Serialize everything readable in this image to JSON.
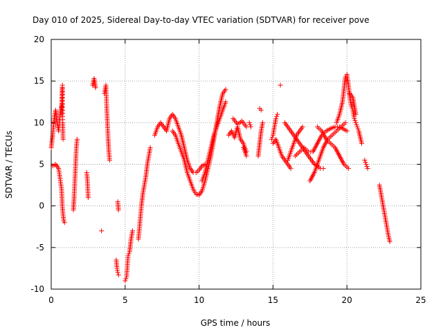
{
  "chart_data": {
    "type": "scatter",
    "title": "Day 010 of 2025, Sidereal Day-to-day VTEC variation (SDTVAR) for receiver pove",
    "xlabel": "GPS time / hours",
    "ylabel": "SDTVAR / TECUs",
    "xlim": [
      0,
      25
    ],
    "ylim": [
      -10,
      20
    ],
    "x_ticks": [
      0,
      5,
      10,
      15,
      20,
      25
    ],
    "y_ticks": [
      -10,
      -5,
      0,
      5,
      10,
      15,
      20
    ],
    "grid": true,
    "marker": "+",
    "series": [
      {
        "name": "SDTVAR",
        "color": "#ff0000",
        "segments": [
          {
            "x": [
              0.0,
              0.1,
              0.2,
              0.3,
              0.4,
              0.5,
              0.6,
              0.7
            ],
            "y": [
              7.0,
              8.5,
              10.5,
              11.5,
              10.0,
              9.0,
              11.0,
              12.0
            ]
          },
          {
            "x": [
              0.1,
              0.3,
              0.5,
              0.7,
              0.75,
              0.8,
              0.85,
              0.9
            ],
            "y": [
              4.8,
              5.0,
              4.5,
              2.0,
              0.0,
              -1.0,
              -1.8,
              -2.0
            ]
          },
          {
            "x": [
              0.7,
              0.72,
              0.74,
              0.76,
              0.78,
              0.8
            ],
            "y": [
              11.0,
              12.5,
              14.0,
              14.5,
              10.0,
              8.0
            ]
          },
          {
            "x": [
              1.5,
              1.55,
              1.6,
              1.65,
              1.7,
              1.75
            ],
            "y": [
              -0.5,
              1.0,
              3.0,
              5.0,
              7.0,
              8.0
            ]
          },
          {
            "x": [
              2.4,
              2.45,
              2.5
            ],
            "y": [
              4.0,
              3.0,
              1.0
            ]
          },
          {
            "x": [
              2.8,
              2.9,
              3.0
            ],
            "y": [
              14.5,
              15.3,
              14.2
            ]
          },
          {
            "x": [
              3.4
            ],
            "y": [
              -3.0
            ]
          },
          {
            "x": [
              3.6,
              3.7,
              3.75,
              3.8,
              3.85,
              3.9,
              3.95
            ],
            "y": [
              13.5,
              14.5,
              12.0,
              10.0,
              8.0,
              6.5,
              5.5
            ]
          },
          {
            "x": [
              4.4,
              4.45,
              4.5,
              4.55
            ],
            "y": [
              -6.5,
              -7.5,
              -8.0,
              -8.3
            ]
          },
          {
            "x": [
              4.5,
              4.55
            ],
            "y": [
              0.5,
              -0.5
            ]
          },
          {
            "x": [
              5.0,
              5.1,
              5.2,
              5.3,
              5.4,
              5.5
            ],
            "y": [
              -9.0,
              -8.5,
              -6.0,
              -5.5,
              -4.0,
              -3.0
            ]
          },
          {
            "x": [
              5.9,
              6.0,
              6.1,
              6.2,
              6.3,
              6.4,
              6.5,
              6.6,
              6.7
            ],
            "y": [
              -4.0,
              -2.0,
              0.0,
              1.5,
              2.5,
              3.5,
              5.0,
              6.0,
              7.0
            ]
          },
          {
            "x": [
              7.0,
              7.2,
              7.4,
              7.6,
              7.8,
              8.0,
              8.2,
              8.4,
              8.6,
              8.8,
              9.0,
              9.2,
              9.4,
              9.6,
              9.8,
              10.0,
              10.2,
              10.4
            ],
            "y": [
              8.5,
              9.5,
              10.0,
              9.5,
              9.0,
              10.5,
              11.0,
              10.5,
              9.5,
              8.5,
              7.0,
              5.5,
              4.5,
              4.0,
              4.0,
              4.3,
              4.8,
              5.0
            ]
          },
          {
            "x": [
              8.2,
              8.4,
              8.6,
              8.8,
              9.0,
              9.2,
              9.4,
              9.6,
              9.8,
              10.0,
              10.2,
              10.4,
              10.6,
              10.8,
              11.0,
              11.2,
              11.4,
              11.6,
              11.8
            ],
            "y": [
              9.0,
              8.5,
              7.5,
              6.5,
              5.5,
              4.0,
              3.0,
              2.0,
              1.4,
              1.3,
              1.8,
              3.0,
              4.5,
              6.0,
              8.0,
              10.0,
              12.0,
              13.5,
              14.0
            ]
          },
          {
            "x": [
              10.2,
              10.4,
              10.6,
              10.8,
              11.0,
              11.2,
              11.4,
              11.6,
              11.8
            ],
            "y": [
              3.0,
              4.0,
              5.5,
              7.0,
              8.5,
              9.5,
              10.5,
              11.5,
              12.5
            ]
          },
          {
            "x": [
              12.0,
              12.2,
              12.4,
              12.6,
              12.8,
              13.0,
              13.2
            ],
            "y": [
              8.5,
              9.0,
              8.2,
              9.5,
              8.0,
              7.5,
              6.5
            ]
          },
          {
            "x": [
              12.3,
              12.6,
              12.9,
              13.2
            ],
            "y": [
              10.5,
              9.8,
              10.2,
              9.5
            ]
          },
          {
            "x": [
              13.0,
              13.2
            ],
            "y": [
              7.0,
              6.0
            ]
          },
          {
            "x": [
              13.4,
              13.5
            ],
            "y": [
              10.0,
              9.5
            ]
          },
          {
            "x": [
              14.0,
              14.1,
              14.2,
              14.3
            ],
            "y": [
              6.0,
              7.5,
              9.0,
              10.0
            ]
          },
          {
            "x": [
              14.1,
              14.2
            ],
            "y": [
              11.7,
              11.5
            ]
          },
          {
            "x": [
              14.9,
              15.0,
              15.1,
              15.2,
              15.3
            ],
            "y": [
              8.0,
              8.5,
              9.5,
              10.5,
              11.0
            ]
          },
          {
            "x": [
              15.5
            ],
            "y": [
              14.5
            ]
          },
          {
            "x": [
              15.0,
              15.2,
              15.4,
              15.6,
              15.8,
              16.0,
              16.2
            ],
            "y": [
              7.5,
              8.0,
              7.0,
              6.0,
              5.5,
              5.0,
              4.5
            ]
          },
          {
            "x": [
              15.8,
              16.0,
              16.2,
              16.4,
              16.6,
              16.8,
              17.0,
              17.2,
              17.4,
              17.6,
              17.8,
              18.0,
              18.2,
              18.4
            ],
            "y": [
              10.0,
              9.5,
              9.0,
              8.5,
              8.0,
              7.5,
              7.0,
              6.5,
              6.0,
              5.5,
              5.0,
              4.8,
              4.5,
              4.5
            ]
          },
          {
            "x": [
              16.0,
              16.2,
              16.4,
              16.6,
              16.8,
              17.0
            ],
            "y": [
              5.5,
              6.5,
              7.5,
              8.5,
              9.0,
              9.5
            ]
          },
          {
            "x": [
              16.5,
              16.8,
              17.1,
              17.4,
              17.7,
              18.0,
              18.3,
              18.6,
              18.9,
              19.2,
              19.5,
              19.8,
              20.0
            ],
            "y": [
              6.0,
              6.5,
              7.0,
              6.5,
              6.5,
              7.5,
              8.5,
              9.0,
              9.3,
              9.5,
              9.5,
              9.2,
              9.0
            ]
          },
          {
            "x": [
              17.5,
              17.8,
              18.1,
              18.4,
              18.7,
              19.0,
              19.3,
              19.6,
              19.9
            ],
            "y": [
              3.0,
              4.0,
              5.5,
              7.0,
              8.0,
              8.5,
              9.0,
              9.5,
              10.0
            ]
          },
          {
            "x": [
              18.0,
              18.3,
              18.6,
              18.9,
              19.2,
              19.5,
              19.8,
              20.1
            ],
            "y": [
              9.5,
              9.0,
              8.0,
              7.5,
              7.0,
              6.0,
              5.0,
              4.5
            ]
          },
          {
            "x": [
              19.3,
              19.5,
              19.7,
              19.8,
              19.9,
              20.0,
              20.1,
              20.2,
              20.3,
              20.4,
              20.5,
              20.6,
              20.7,
              20.8,
              21.0
            ],
            "y": [
              10.0,
              11.0,
              12.5,
              14.0,
              15.5,
              15.8,
              14.5,
              13.0,
              12.0,
              11.5,
              10.5,
              10.0,
              9.5,
              9.0,
              7.5
            ]
          },
          {
            "x": [
              20.2,
              20.4,
              20.6
            ],
            "y": [
              13.5,
              13.0,
              11.0
            ]
          },
          {
            "x": [
              21.2,
              21.3,
              21.4
            ],
            "y": [
              5.5,
              5.0,
              4.5
            ]
          },
          {
            "x": [
              22.2,
              22.3,
              22.4,
              22.5,
              22.6,
              22.7,
              22.8,
              22.9
            ],
            "y": [
              2.5,
              1.5,
              0.5,
              -0.5,
              -1.5,
              -2.5,
              -3.5,
              -4.3
            ]
          }
        ]
      }
    ]
  }
}
